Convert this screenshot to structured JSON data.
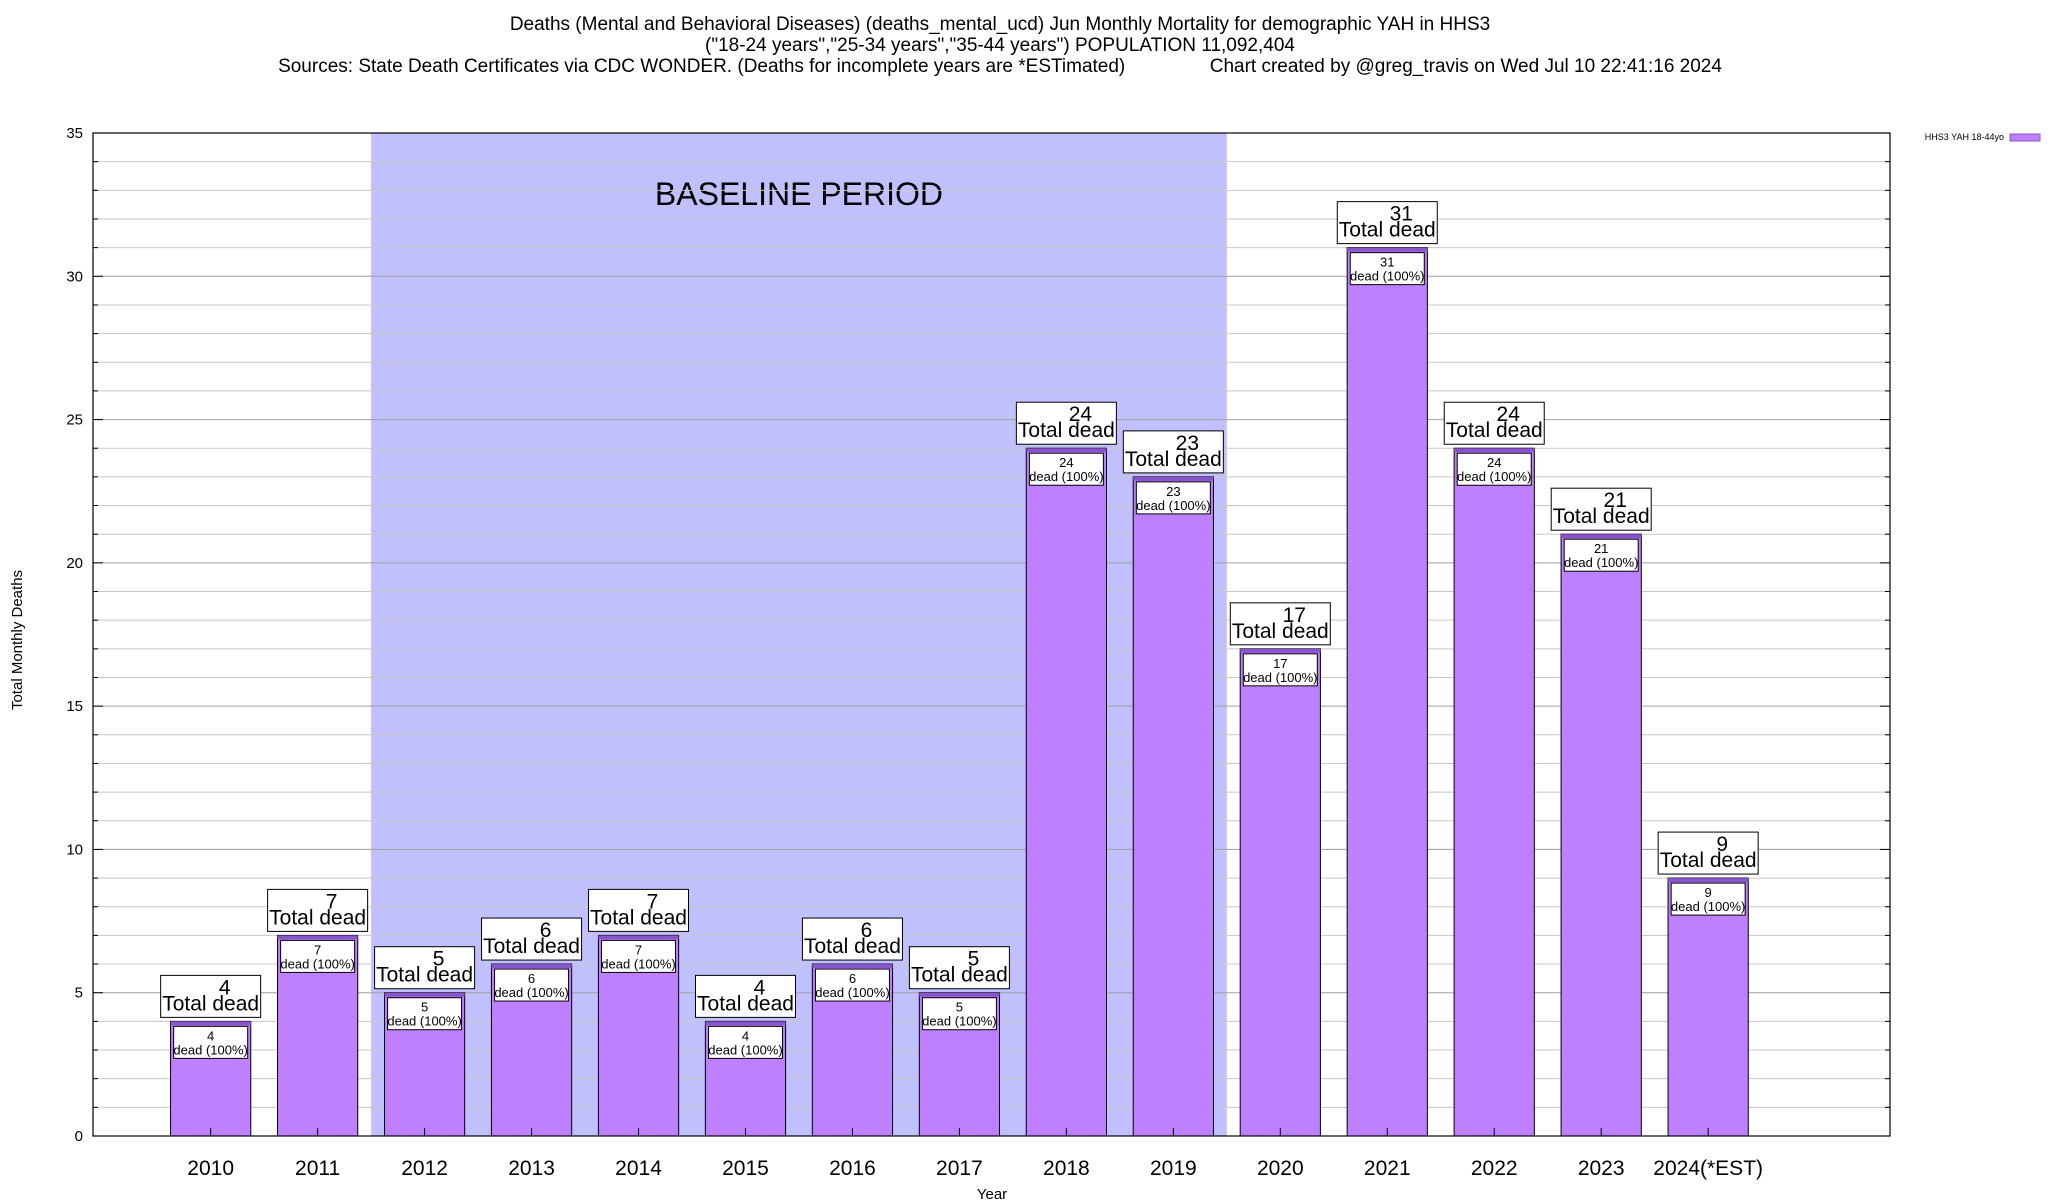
{
  "header": {
    "line1": "Deaths (Mental and Behavioral Diseases) (deaths_mental_ucd) Jun Monthly Mortality for demographic YAH in HHS3",
    "line2": "(\"18-24 years\",\"25-34 years\",\"35-44 years\") POPULATION 11,092,404",
    "line3_left": "Sources: State Death Certificates via CDC WONDER. (Deaths for incomplete years are *ESTimated)",
    "line3_right": "Chart created by @greg_travis on Wed Jul 10 22:41:16 2024"
  },
  "chart_data": {
    "type": "bar",
    "title": "Deaths (Mental and Behavioral Diseases) (deaths_mental_ucd) Jun Monthly Mortality for demographic YAH in HHS3",
    "xlabel": "Year",
    "ylabel": "Total Monthly Deaths",
    "ylim": [
      0,
      35
    ],
    "yticks": [
      0,
      5,
      10,
      15,
      20,
      25,
      30,
      35
    ],
    "grid": true,
    "legend_position": "top-right",
    "categories": [
      "2010",
      "2011",
      "2012",
      "2013",
      "2014",
      "2015",
      "2016",
      "2017",
      "2018",
      "2019",
      "2020",
      "2021",
      "2022",
      "2023",
      "2024(*EST)"
    ],
    "series": [
      {
        "name": "HHS3 YAH 18-44yo",
        "values": [
          4,
          7,
          5,
          6,
          7,
          4,
          6,
          5,
          24,
          23,
          17,
          31,
          24,
          21,
          9
        ]
      }
    ],
    "total_label_suffix": "Total dead",
    "inner_label_suffix": "dead (100%)",
    "baseline": {
      "label": "BASELINE PERIOD",
      "start": "2012",
      "end": "2019",
      "color": "#c0c0ff"
    },
    "bar_color": "#bf80ff",
    "bar_top_color": "#8855cc"
  }
}
